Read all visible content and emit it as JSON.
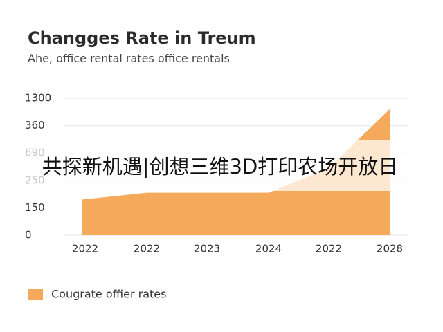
{
  "chart_data": {
    "type": "area",
    "title": "Changges Rate in Treum",
    "subtitle": "Ahe, office rental rates office rentals",
    "categories": [
      "2022",
      "2022",
      "2023",
      "2024",
      "2022",
      "2028"
    ],
    "series": [
      {
        "name": "Cougrate offier rates",
        "color": "#f5a95a",
        "values": [
          1.3,
          1.55,
          1.55,
          1.55,
          2.45,
          4.6
        ]
      }
    ],
    "ylim": [
      0,
      5
    ],
    "yticks": [
      {
        "value": 0,
        "label": "0"
      },
      {
        "value": 1,
        "label": "150"
      },
      {
        "value": 2,
        "label": "250"
      },
      {
        "value": 3,
        "label": "690"
      },
      {
        "value": 4,
        "label": "360"
      },
      {
        "value": 5,
        "label": "1300"
      }
    ],
    "grid": true,
    "legend": "bottom-left"
  },
  "banner": "共探新机遇|创想三维3D打印农场开放日"
}
